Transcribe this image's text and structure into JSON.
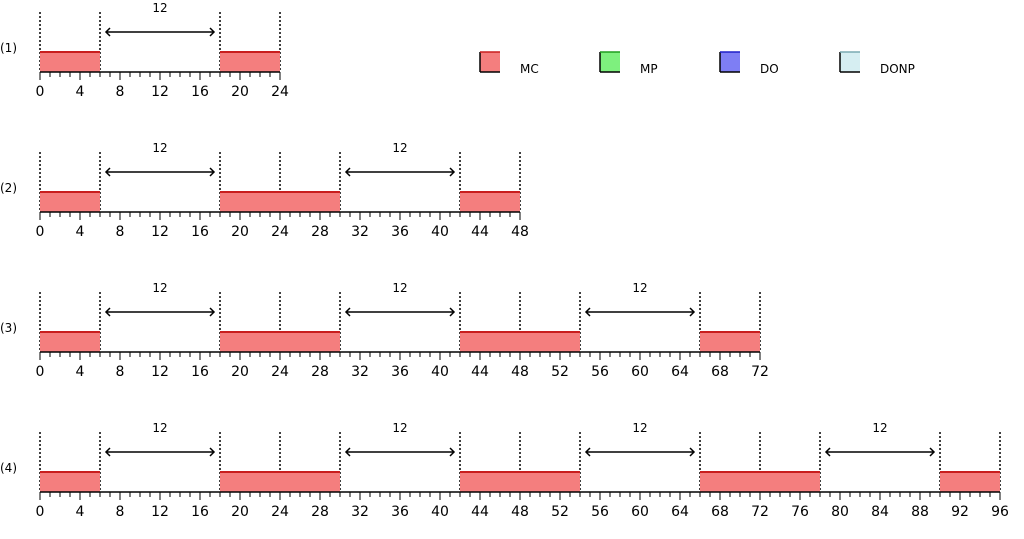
{
  "legend": [
    {
      "label": "MC",
      "color": "#f47e7e",
      "edge": "#c81e1e"
    },
    {
      "label": "MP",
      "color": "#7ef07e",
      "edge": "#1e9e1e"
    },
    {
      "label": "DO",
      "color": "#7e7ef4",
      "edge": "#1e1ec8"
    },
    {
      "label": "DONP",
      "color": "#d6eef2",
      "edge": "#7aaab2"
    }
  ],
  "rows": [
    {
      "label": "(1)",
      "range": [
        0,
        24
      ],
      "tick_labels": [
        "0",
        "4",
        "8",
        "12",
        "16",
        "20",
        "24"
      ],
      "dotted_at": [
        0,
        6,
        18,
        24
      ],
      "blocks": [
        {
          "start": 0,
          "end": 6,
          "type": "MC"
        },
        {
          "start": 18,
          "end": 24,
          "type": "MC"
        }
      ],
      "intervals": [
        {
          "start": 6,
          "end": 18,
          "label": "12"
        }
      ]
    },
    {
      "label": "(2)",
      "range": [
        0,
        48
      ],
      "tick_labels": [
        "0",
        "4",
        "8",
        "12",
        "16",
        "20",
        "24",
        "28",
        "32",
        "36",
        "40",
        "44",
        "48"
      ],
      "dotted_at": [
        0,
        6,
        18,
        24,
        30,
        42,
        48
      ],
      "blocks": [
        {
          "start": 0,
          "end": 6,
          "type": "MC"
        },
        {
          "start": 18,
          "end": 24,
          "type": "MC"
        },
        {
          "start": 24,
          "end": 30,
          "type": "MC"
        },
        {
          "start": 42,
          "end": 48,
          "type": "MC"
        }
      ],
      "intervals": [
        {
          "start": 6,
          "end": 18,
          "label": "12"
        },
        {
          "start": 30,
          "end": 42,
          "label": "12"
        }
      ]
    },
    {
      "label": "(3)",
      "range": [
        0,
        72
      ],
      "tick_labels": [
        "0",
        "4",
        "8",
        "12",
        "16",
        "20",
        "24",
        "28",
        "32",
        "36",
        "40",
        "44",
        "48",
        "52",
        "56",
        "60",
        "64",
        "68",
        "72"
      ],
      "dotted_at": [
        0,
        6,
        18,
        24,
        30,
        42,
        48,
        54,
        66,
        72
      ],
      "blocks": [
        {
          "start": 0,
          "end": 6,
          "type": "MC"
        },
        {
          "start": 18,
          "end": 24,
          "type": "MC"
        },
        {
          "start": 24,
          "end": 30,
          "type": "MC"
        },
        {
          "start": 42,
          "end": 48,
          "type": "MC"
        },
        {
          "start": 48,
          "end": 54,
          "type": "MC"
        },
        {
          "start": 66,
          "end": 72,
          "type": "MC"
        }
      ],
      "intervals": [
        {
          "start": 6,
          "end": 18,
          "label": "12"
        },
        {
          "start": 30,
          "end": 42,
          "label": "12"
        },
        {
          "start": 54,
          "end": 66,
          "label": "12"
        }
      ]
    },
    {
      "label": "(4)",
      "range": [
        0,
        96
      ],
      "tick_labels": [
        "0",
        "4",
        "8",
        "12",
        "16",
        "20",
        "24",
        "28",
        "32",
        "36",
        "40",
        "44",
        "48",
        "52",
        "56",
        "60",
        "64",
        "68",
        "72",
        "76",
        "80",
        "84",
        "88",
        "92",
        "96"
      ],
      "dotted_at": [
        0,
        6,
        18,
        24,
        30,
        42,
        48,
        54,
        66,
        72,
        78,
        90,
        96
      ],
      "blocks": [
        {
          "start": 0,
          "end": 6,
          "type": "MC"
        },
        {
          "start": 18,
          "end": 24,
          "type": "MC"
        },
        {
          "start": 24,
          "end": 30,
          "type": "MC"
        },
        {
          "start": 42,
          "end": 48,
          "type": "MC"
        },
        {
          "start": 48,
          "end": 54,
          "type": "MC"
        },
        {
          "start": 66,
          "end": 72,
          "type": "MC"
        },
        {
          "start": 72,
          "end": 78,
          "type": "MC"
        },
        {
          "start": 90,
          "end": 96,
          "type": "MC"
        }
      ],
      "intervals": [
        {
          "start": 6,
          "end": 18,
          "label": "12"
        },
        {
          "start": 30,
          "end": 42,
          "label": "12"
        },
        {
          "start": 54,
          "end": 66,
          "label": "12"
        },
        {
          "start": 78,
          "end": 90,
          "label": "12"
        }
      ]
    }
  ]
}
